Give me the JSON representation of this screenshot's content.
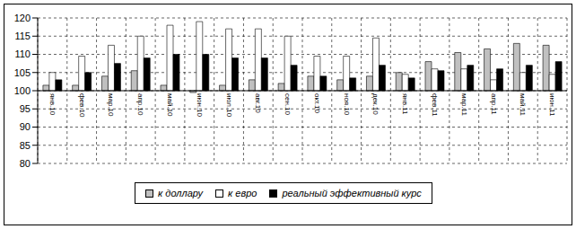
{
  "chart_data": {
    "type": "bar",
    "categories": [
      "янв.10",
      "фев.10",
      "мар.10",
      "апр.10",
      "май.10",
      "июн.10",
      "июл.10",
      "авг.10",
      "сен.10",
      "окт.10",
      "ноя.10",
      "дек.10",
      "янв.11",
      "фев.11",
      "мар.11",
      "апр.11",
      "май.11",
      "июн.11"
    ],
    "series": [
      {
        "name": "к доллару",
        "color": "#c0c0c0",
        "values": [
          101.5,
          101.5,
          104,
          105.5,
          101.5,
          99.5,
          101.5,
          103,
          102,
          104,
          103,
          104,
          105,
          108,
          110.5,
          111.5,
          113,
          112.5
        ]
      },
      {
        "name": "к евро",
        "color": "#ffffff",
        "values": [
          105,
          109.5,
          112.5,
          115,
          118,
          119,
          117,
          117,
          115,
          109.5,
          109.5,
          114.5,
          104.5,
          106,
          106,
          103,
          105,
          104.5
        ]
      },
      {
        "name": "реальный эффективный курс",
        "color": "#000000",
        "values": [
          103,
          105,
          107.5,
          109,
          110,
          110,
          109,
          109,
          107,
          104,
          103.5,
          107,
          103.5,
          105.5,
          107,
          106,
          107,
          108
        ]
      }
    ],
    "baseline": 100,
    "ylim": [
      80,
      120
    ],
    "yticks": [
      80,
      85,
      90,
      95,
      100,
      105,
      110,
      115,
      120
    ],
    "grid": true,
    "legend": "bottom"
  }
}
